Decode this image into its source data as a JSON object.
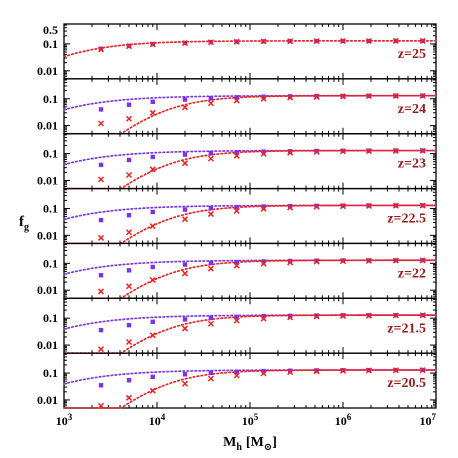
{
  "chart_data": {
    "type": "scatter",
    "xlabel": "M",
    "xlabel_sub": "h",
    "xlabel_unit_open": "[M",
    "xlabel_unit_sub": "⊙",
    "xlabel_unit_close": "]",
    "ylabel": "f",
    "ylabel_sub": "g",
    "x_scale": "log",
    "xlim": [
      1000,
      10000000
    ],
    "x_ticks": [
      {
        "value": 1000,
        "base": "10",
        "exp": "3"
      },
      {
        "value": 10000,
        "base": "10",
        "exp": "4"
      },
      {
        "value": 100000,
        "base": "10",
        "exp": "5"
      },
      {
        "value": 1000000,
        "base": "10",
        "exp": "6"
      },
      {
        "value": 10000000,
        "base": "10",
        "exp": "7"
      }
    ],
    "y_scale": "log",
    "ylim": [
      0.005,
      0.55
    ],
    "top_panel_y_ticks": [
      "0.5",
      "0.1",
      "0.01"
    ],
    "y_ticks": [
      "0.1",
      "0.01"
    ],
    "colors": {
      "purple": "#7733ee",
      "red": "#ee2222",
      "label": "#9b1b1b"
    },
    "markers": {
      "purple": "square",
      "red": "cross"
    },
    "x": [
      2500,
      5000,
      9000,
      20000,
      38000,
      72000,
      140000,
      270000,
      520000,
      1000000,
      1900000,
      3700000,
      7200000
    ],
    "panels": [
      {
        "label": "z=25",
        "series": [
          {
            "color": "purple",
            "values": [
              0.066,
              0.085,
              0.098,
              0.109,
              0.116,
              0.121,
              0.124,
              0.126,
              0.127,
              0.128,
              0.128,
              0.129,
              0.129
            ]
          },
          {
            "color": "red",
            "values": [
              0.062,
              0.082,
              0.096,
              0.107,
              0.115,
              0.12,
              0.124,
              0.126,
              0.127,
              0.128,
              0.128,
              0.129,
              0.129
            ]
          }
        ]
      },
      {
        "label": "z=24",
        "series": [
          {
            "color": "purple",
            "values": [
              0.04,
              0.06,
              0.077,
              0.093,
              0.105,
              0.113,
              0.119,
              0.123,
              0.126,
              0.127,
              0.128,
              0.129,
              0.13
            ]
          },
          {
            "color": "red",
            "values": [
              0.012,
              0.018,
              0.03,
              0.048,
              0.068,
              0.085,
              0.1,
              0.11,
              0.117,
              0.122,
              0.125,
              0.127,
              0.128
            ]
          }
        ]
      },
      {
        "label": "z=23",
        "series": [
          {
            "color": "purple",
            "values": [
              0.038,
              0.058,
              0.075,
              0.092,
              0.104,
              0.112,
              0.118,
              0.122,
              0.125,
              0.127,
              0.128,
              0.129,
              0.13
            ]
          },
          {
            "color": "red",
            "values": [
              0.011,
              0.016,
              0.026,
              0.044,
              0.065,
              0.083,
              0.098,
              0.108,
              0.116,
              0.121,
              0.124,
              0.126,
              0.128
            ]
          }
        ]
      },
      {
        "label": "z=22.5",
        "series": [
          {
            "color": "purple",
            "values": [
              0.037,
              0.056,
              0.074,
              0.091,
              0.103,
              0.112,
              0.118,
              0.122,
              0.125,
              0.127,
              0.128,
              0.129,
              0.13
            ]
          },
          {
            "color": "red",
            "values": [
              0.008,
              0.013,
              0.022,
              0.04,
              0.062,
              0.081,
              0.097,
              0.108,
              0.116,
              0.121,
              0.124,
              0.126,
              0.128
            ]
          }
        ]
      },
      {
        "label": "z=22",
        "series": [
          {
            "color": "purple",
            "values": [
              0.036,
              0.055,
              0.073,
              0.09,
              0.103,
              0.111,
              0.118,
              0.122,
              0.125,
              0.127,
              0.128,
              0.129,
              0.13
            ]
          },
          {
            "color": "red",
            "values": [
              0.009,
              0.014,
              0.024,
              0.042,
              0.063,
              0.082,
              0.097,
              0.108,
              0.116,
              0.121,
              0.124,
              0.126,
              0.128
            ]
          }
        ]
      },
      {
        "label": "z=21.5",
        "series": [
          {
            "color": "purple",
            "values": [
              0.036,
              0.055,
              0.073,
              0.09,
              0.103,
              0.111,
              0.118,
              0.122,
              0.125,
              0.127,
              0.128,
              0.129,
              0.13
            ]
          },
          {
            "color": "red",
            "values": [
              0.007,
              0.013,
              0.023,
              0.041,
              0.062,
              0.081,
              0.097,
              0.108,
              0.116,
              0.121,
              0.124,
              0.126,
              0.128
            ]
          }
        ]
      },
      {
        "label": "z=20.5",
        "series": [
          {
            "color": "purple",
            "values": [
              0.035,
              0.054,
              0.072,
              0.09,
              0.102,
              0.111,
              0.118,
              0.122,
              0.125,
              0.127,
              0.128,
              0.129,
              0.13
            ]
          },
          {
            "color": "red",
            "values": [
              0.006,
              0.012,
              0.022,
              0.04,
              0.062,
              0.081,
              0.097,
              0.108,
              0.116,
              0.121,
              0.124,
              0.126,
              0.128
            ]
          }
        ]
      }
    ],
    "fit_curves": [
      {
        "color": "purple",
        "fg_max": 0.13,
        "m_half": 2000,
        "shape_n": 0.9,
        "panels": [
          1,
          2,
          3,
          4,
          5,
          6
        ]
      },
      {
        "color": "red",
        "fg_max": 0.13,
        "m_half": 2200,
        "shape_n": 1.0,
        "panels": [
          0
        ]
      },
      {
        "color": "red",
        "fg_max": 0.13,
        "m_half": 22000,
        "shape_n": 1.3,
        "panels": [
          1,
          2,
          3,
          4,
          5,
          6
        ]
      }
    ]
  }
}
